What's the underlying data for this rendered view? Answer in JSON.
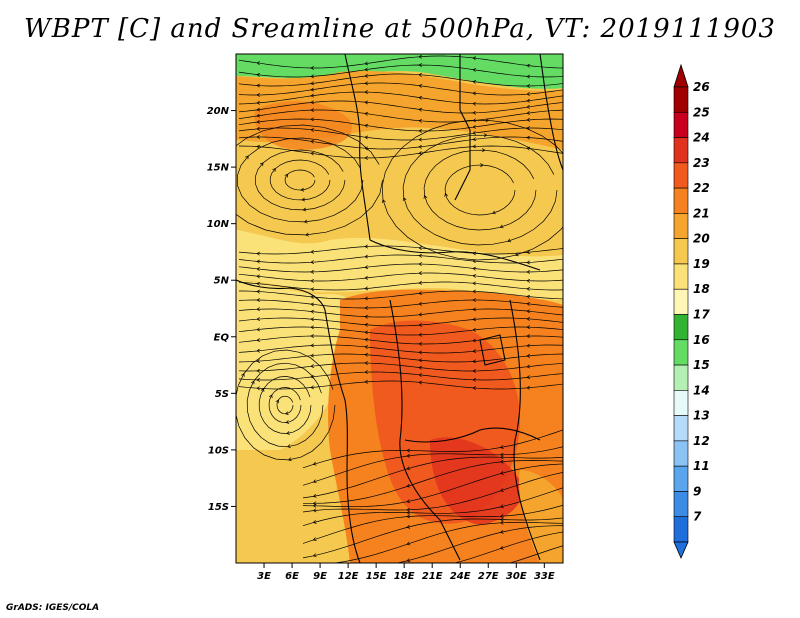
{
  "title": "WBPT [C] and Sreamline at 500hPa, VT: 2019111903",
  "credit": "GrADS: IGES/COLA",
  "map": {
    "lat_labels": [
      {
        "lat": 20,
        "text": "20N"
      },
      {
        "lat": 15,
        "text": "15N"
      },
      {
        "lat": 10,
        "text": "10N"
      },
      {
        "lat": 5,
        "text": "5N"
      },
      {
        "lat": 0,
        "text": "EQ"
      },
      {
        "lat": -5,
        "text": "5S"
      },
      {
        "lat": -10,
        "text": "10S"
      },
      {
        "lat": -15,
        "text": "15S"
      }
    ],
    "lon_labels": [
      {
        "lon": 3,
        "text": "3E"
      },
      {
        "lon": 6,
        "text": "6E"
      },
      {
        "lon": 9,
        "text": "9E"
      },
      {
        "lon": 12,
        "text": "12E"
      },
      {
        "lon": 15,
        "text": "15E"
      },
      {
        "lon": 18,
        "text": "18E"
      },
      {
        "lon": 21,
        "text": "21E"
      },
      {
        "lon": 24,
        "text": "24E"
      },
      {
        "lon": 27,
        "text": "27E"
      },
      {
        "lon": 30,
        "text": "30E"
      },
      {
        "lon": 33,
        "text": "33E"
      }
    ],
    "lon_range": [
      0,
      35
    ],
    "lat_range": [
      -20,
      25
    ]
  },
  "colorbar": {
    "levels": [
      {
        "label": "26",
        "color": "#a00000"
      },
      {
        "label": "25",
        "color": "#c8001e"
      },
      {
        "label": "24",
        "color": "#e0321e"
      },
      {
        "label": "23",
        "color": "#f05a1e"
      },
      {
        "label": "22",
        "color": "#f5821e"
      },
      {
        "label": "21",
        "color": "#f5a52d"
      },
      {
        "label": "20",
        "color": "#f5c850"
      },
      {
        "label": "19",
        "color": "#fae178"
      },
      {
        "label": "18",
        "color": "#fff5b4"
      },
      {
        "label": "17",
        "color": "#32b432"
      },
      {
        "label": "16",
        "color": "#64dc64"
      },
      {
        "label": "15",
        "color": "#b4f0b4"
      },
      {
        "label": "14",
        "color": "#e6fafa"
      },
      {
        "label": "13",
        "color": "#b4dcfa"
      },
      {
        "label": "12",
        "color": "#8cc3f5"
      },
      {
        "label": "11",
        "color": "#5aa5ee"
      },
      {
        "label": "9",
        "color": "#3c8ce6"
      },
      {
        "label": "7",
        "color": "#1e6edc"
      }
    ],
    "top_arrow_color": "#a00000",
    "bottom_arrow_color": "#1e6edc"
  }
}
